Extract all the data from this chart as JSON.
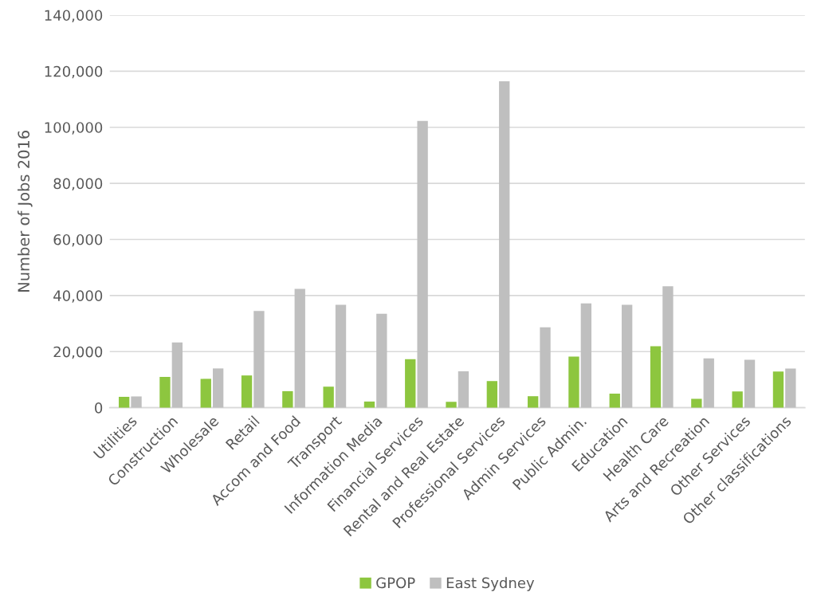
{
  "chart_data": {
    "type": "bar",
    "ylabel": "Number of Jobs 2016",
    "categories": [
      "Utilities",
      "Construction",
      "Wholesale",
      "Retail",
      "Accom and Food",
      "Transport",
      "Information Media",
      "Financial Services",
      "Rental and Real Estate",
      "Professional Services",
      "Admin Services",
      "Public Admin.",
      "Education",
      "Health Care",
      "Arts and Recreation",
      "Other Services",
      "Other classifications"
    ],
    "series": [
      {
        "name": "GPOP",
        "color": "#8dc63f",
        "values": [
          3900,
          11000,
          10300,
          11500,
          5900,
          7500,
          2200,
          17300,
          2100,
          9500,
          4100,
          18200,
          5000,
          21900,
          3200,
          5800,
          12900
        ]
      },
      {
        "name": "East Sydney",
        "color": "#bfbfbf",
        "values": [
          4000,
          23300,
          14000,
          34500,
          42400,
          36700,
          33500,
          102300,
          13000,
          116400,
          28700,
          37200,
          36700,
          43300,
          17600,
          17100,
          14000
        ]
      }
    ],
    "ylim": [
      0,
      140000
    ],
    "yticks": [
      {
        "value": 0,
        "label": "0"
      },
      {
        "value": 20000,
        "label": "20,000"
      },
      {
        "value": 40000,
        "label": "40,000"
      },
      {
        "value": 60000,
        "label": "60,000"
      },
      {
        "value": 80000,
        "label": "80,000"
      },
      {
        "value": 100000,
        "label": "100,000"
      },
      {
        "value": 120000,
        "label": "120,000"
      },
      {
        "value": 140000,
        "label": "140,000"
      }
    ],
    "grid": "y",
    "legend": "bottom"
  }
}
